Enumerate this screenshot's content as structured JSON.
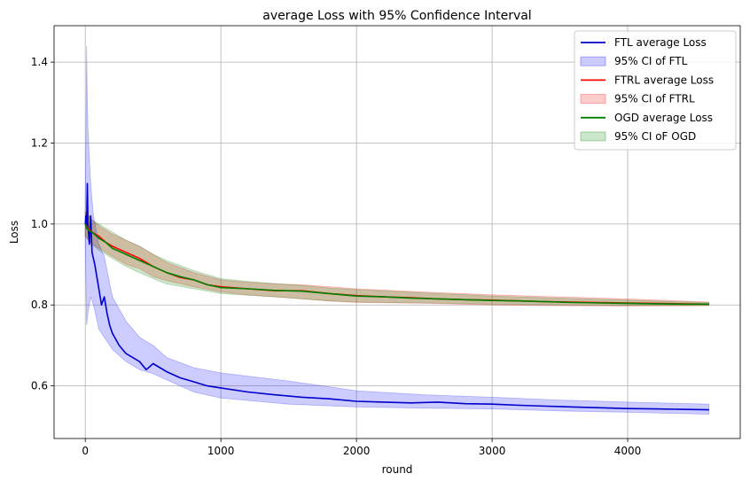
{
  "chart_data": {
    "type": "line",
    "title": "average Loss with 95% Confidence Interval",
    "xlabel": "round",
    "ylabel": "Loss",
    "xlim": [
      -230,
      4830
    ],
    "ylim": [
      0.47,
      1.49
    ],
    "x_ticks": [
      0,
      1000,
      2000,
      3000,
      4000
    ],
    "y_ticks": [
      0.6,
      0.8,
      1.0,
      1.2,
      1.4
    ],
    "grid": true,
    "legend_position": "top-right",
    "series": [
      {
        "name": "FTL average Loss",
        "ci_name": "95% CI of FTL",
        "color": "#0000cc",
        "ci_color": "#0000ff",
        "points": [
          [
            0,
            1.0
          ],
          [
            5,
            1.02
          ],
          [
            10,
            0.99
          ],
          [
            15,
            1.1
          ],
          [
            20,
            1.0
          ],
          [
            30,
            0.95
          ],
          [
            40,
            1.02
          ],
          [
            50,
            0.93
          ],
          [
            70,
            0.9
          ],
          [
            100,
            0.84
          ],
          [
            120,
            0.8
          ],
          [
            140,
            0.82
          ],
          [
            160,
            0.78
          ],
          [
            180,
            0.75
          ],
          [
            200,
            0.73
          ],
          [
            250,
            0.7
          ],
          [
            300,
            0.68
          ],
          [
            350,
            0.67
          ],
          [
            400,
            0.66
          ],
          [
            450,
            0.64
          ],
          [
            500,
            0.655
          ],
          [
            550,
            0.645
          ],
          [
            600,
            0.635
          ],
          [
            700,
            0.62
          ],
          [
            800,
            0.61
          ],
          [
            900,
            0.6
          ],
          [
            1000,
            0.595
          ],
          [
            1200,
            0.585
          ],
          [
            1400,
            0.578
          ],
          [
            1600,
            0.572
          ],
          [
            1800,
            0.568
          ],
          [
            2000,
            0.562
          ],
          [
            2200,
            0.56
          ],
          [
            2400,
            0.558
          ],
          [
            2600,
            0.56
          ],
          [
            2800,
            0.556
          ],
          [
            3000,
            0.555
          ],
          [
            3200,
            0.552
          ],
          [
            3400,
            0.55
          ],
          [
            3600,
            0.548
          ],
          [
            3800,
            0.546
          ],
          [
            4000,
            0.544
          ],
          [
            4200,
            0.543
          ],
          [
            4400,
            0.542
          ],
          [
            4600,
            0.541
          ]
        ],
        "ci_lower": [
          [
            0,
            0.96
          ],
          [
            10,
            0.75
          ],
          [
            20,
            0.78
          ],
          [
            40,
            0.82
          ],
          [
            60,
            0.8
          ],
          [
            100,
            0.74
          ],
          [
            140,
            0.72
          ],
          [
            200,
            0.69
          ],
          [
            300,
            0.66
          ],
          [
            400,
            0.64
          ],
          [
            500,
            0.63
          ],
          [
            600,
            0.615
          ],
          [
            800,
            0.585
          ],
          [
            1000,
            0.57
          ],
          [
            1500,
            0.555
          ],
          [
            2000,
            0.548
          ],
          [
            2500,
            0.545
          ],
          [
            3000,
            0.543
          ],
          [
            3500,
            0.538
          ],
          [
            4000,
            0.535
          ],
          [
            4600,
            0.53
          ]
        ],
        "ci_upper": [
          [
            0,
            1.05
          ],
          [
            5,
            1.2
          ],
          [
            10,
            1.44
          ],
          [
            15,
            1.3
          ],
          [
            20,
            1.24
          ],
          [
            30,
            1.16
          ],
          [
            40,
            1.1
          ],
          [
            60,
            1.02
          ],
          [
            100,
            0.95
          ],
          [
            140,
            0.92
          ],
          [
            200,
            0.82
          ],
          [
            300,
            0.76
          ],
          [
            400,
            0.72
          ],
          [
            500,
            0.7
          ],
          [
            600,
            0.67
          ],
          [
            800,
            0.645
          ],
          [
            1000,
            0.632
          ],
          [
            1500,
            0.612
          ],
          [
            2000,
            0.588
          ],
          [
            2500,
            0.578
          ],
          [
            3000,
            0.572
          ],
          [
            3500,
            0.565
          ],
          [
            4000,
            0.56
          ],
          [
            4600,
            0.555
          ]
        ]
      },
      {
        "name": "FTRL average Loss",
        "ci_name": "95% CI of FTRL",
        "color": "#ff0000",
        "ci_color": "#ff0000",
        "points": [
          [
            0,
            1.0
          ],
          [
            20,
            0.99
          ],
          [
            50,
            0.98
          ],
          [
            100,
            0.97
          ],
          [
            150,
            0.955
          ],
          [
            200,
            0.945
          ],
          [
            300,
            0.93
          ],
          [
            400,
            0.915
          ],
          [
            500,
            0.895
          ],
          [
            600,
            0.88
          ],
          [
            700,
            0.868
          ],
          [
            800,
            0.862
          ],
          [
            900,
            0.85
          ],
          [
            1000,
            0.845
          ],
          [
            1200,
            0.84
          ],
          [
            1400,
            0.835
          ],
          [
            1600,
            0.835
          ],
          [
            1800,
            0.828
          ],
          [
            2000,
            0.823
          ],
          [
            2200,
            0.82
          ],
          [
            2400,
            0.818
          ],
          [
            2600,
            0.815
          ],
          [
            2800,
            0.813
          ],
          [
            3000,
            0.812
          ],
          [
            3200,
            0.81
          ],
          [
            3400,
            0.808
          ],
          [
            3600,
            0.807
          ],
          [
            3800,
            0.806
          ],
          [
            4000,
            0.805
          ],
          [
            4200,
            0.804
          ],
          [
            4400,
            0.803
          ],
          [
            4600,
            0.802
          ]
        ],
        "ci_lower": [
          [
            0,
            0.97
          ],
          [
            50,
            0.95
          ],
          [
            100,
            0.94
          ],
          [
            200,
            0.92
          ],
          [
            300,
            0.9
          ],
          [
            400,
            0.89
          ],
          [
            500,
            0.87
          ],
          [
            600,
            0.86
          ],
          [
            800,
            0.845
          ],
          [
            1000,
            0.832
          ],
          [
            1200,
            0.825
          ],
          [
            1400,
            0.82
          ],
          [
            1600,
            0.815
          ],
          [
            1800,
            0.81
          ],
          [
            2000,
            0.806
          ],
          [
            2500,
            0.804
          ],
          [
            3000,
            0.8
          ],
          [
            3500,
            0.798
          ],
          [
            4000,
            0.797
          ],
          [
            4600,
            0.798
          ]
        ],
        "ci_upper": [
          [
            0,
            1.03
          ],
          [
            50,
            1.01
          ],
          [
            100,
            0.995
          ],
          [
            200,
            0.975
          ],
          [
            300,
            0.96
          ],
          [
            400,
            0.945
          ],
          [
            500,
            0.925
          ],
          [
            600,
            0.905
          ],
          [
            800,
            0.88
          ],
          [
            1000,
            0.862
          ],
          [
            1200,
            0.856
          ],
          [
            1400,
            0.852
          ],
          [
            1600,
            0.85
          ],
          [
            1800,
            0.845
          ],
          [
            2000,
            0.84
          ],
          [
            2500,
            0.832
          ],
          [
            3000,
            0.825
          ],
          [
            3500,
            0.82
          ],
          [
            4000,
            0.815
          ],
          [
            4600,
            0.807
          ]
        ]
      },
      {
        "name": "OGD average Loss",
        "ci_name": "95% CI oF OGD",
        "color": "#008000",
        "ci_color": "#008000",
        "points": [
          [
            0,
            1.0
          ],
          [
            20,
            0.985
          ],
          [
            50,
            0.98
          ],
          [
            100,
            0.965
          ],
          [
            150,
            0.955
          ],
          [
            200,
            0.94
          ],
          [
            300,
            0.925
          ],
          [
            400,
            0.91
          ],
          [
            500,
            0.895
          ],
          [
            600,
            0.88
          ],
          [
            700,
            0.87
          ],
          [
            800,
            0.862
          ],
          [
            900,
            0.85
          ],
          [
            1000,
            0.843
          ],
          [
            1200,
            0.84
          ],
          [
            1400,
            0.836
          ],
          [
            1600,
            0.834
          ],
          [
            1800,
            0.828
          ],
          [
            2000,
            0.822
          ],
          [
            2200,
            0.82
          ],
          [
            2400,
            0.817
          ],
          [
            2600,
            0.815
          ],
          [
            2800,
            0.813
          ],
          [
            3000,
            0.811
          ],
          [
            3200,
            0.81
          ],
          [
            3400,
            0.808
          ],
          [
            3600,
            0.806
          ],
          [
            3800,
            0.805
          ],
          [
            4000,
            0.804
          ],
          [
            4200,
            0.803
          ],
          [
            4400,
            0.802
          ],
          [
            4600,
            0.802
          ]
        ],
        "ci_lower": [
          [
            0,
            0.97
          ],
          [
            50,
            0.95
          ],
          [
            100,
            0.935
          ],
          [
            200,
            0.915
          ],
          [
            300,
            0.895
          ],
          [
            400,
            0.88
          ],
          [
            500,
            0.865
          ],
          [
            600,
            0.852
          ],
          [
            800,
            0.84
          ],
          [
            1000,
            0.828
          ],
          [
            1200,
            0.824
          ],
          [
            1400,
            0.82
          ],
          [
            1600,
            0.815
          ],
          [
            1800,
            0.81
          ],
          [
            2000,
            0.807
          ],
          [
            2500,
            0.805
          ],
          [
            3000,
            0.802
          ],
          [
            3500,
            0.8
          ],
          [
            4000,
            0.799
          ],
          [
            4600,
            0.799
          ]
        ],
        "ci_upper": [
          [
            0,
            1.03
          ],
          [
            50,
            1.01
          ],
          [
            100,
            1.0
          ],
          [
            200,
            0.98
          ],
          [
            300,
            0.96
          ],
          [
            400,
            0.945
          ],
          [
            500,
            0.925
          ],
          [
            600,
            0.91
          ],
          [
            800,
            0.885
          ],
          [
            1000,
            0.865
          ],
          [
            1200,
            0.858
          ],
          [
            1400,
            0.853
          ],
          [
            1600,
            0.848
          ],
          [
            1800,
            0.842
          ],
          [
            2000,
            0.838
          ],
          [
            2500,
            0.83
          ],
          [
            3000,
            0.822
          ],
          [
            3500,
            0.817
          ],
          [
            4000,
            0.812
          ],
          [
            4600,
            0.806
          ]
        ]
      }
    ]
  }
}
